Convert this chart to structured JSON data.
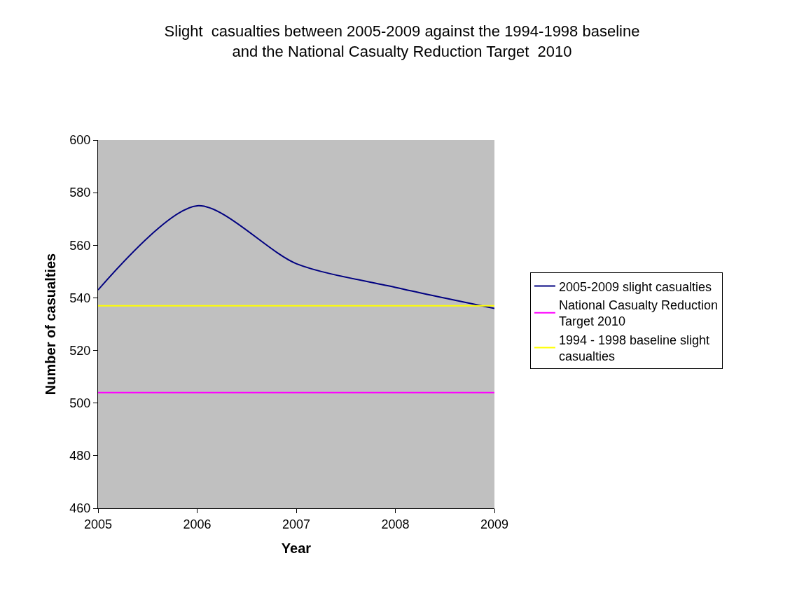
{
  "chart_data": {
    "type": "line",
    "title": "Slight  casualties between 2005-2009 against the 1994-1998 baseline and the National Casualty Reduction Target  2010",
    "xlabel": "Year",
    "ylabel": "Number of casualties",
    "x": [
      2005,
      2006,
      2007,
      2008,
      2009
    ],
    "series": [
      {
        "name": "2005-2009 slight casualties",
        "color": "#000080",
        "values": [
          543,
          575,
          553,
          544,
          536
        ]
      },
      {
        "name": "National Casualty Reduction Target 2010",
        "color": "#ff00ff",
        "values": [
          504,
          504,
          504,
          504,
          504
        ]
      },
      {
        "name": "1994 - 1998 baseline slight casualties",
        "color": "#ffff00",
        "values": [
          537,
          537,
          537,
          537,
          537
        ]
      }
    ],
    "xlim": [
      2005,
      2009
    ],
    "xticks": [
      2005,
      2006,
      2007,
      2008,
      2009
    ],
    "ylim": [
      460,
      600
    ],
    "yticks": [
      460,
      480,
      500,
      520,
      540,
      560,
      580,
      600
    ],
    "grid": false,
    "legend": "right",
    "marker": "none",
    "line_style": "solid"
  }
}
